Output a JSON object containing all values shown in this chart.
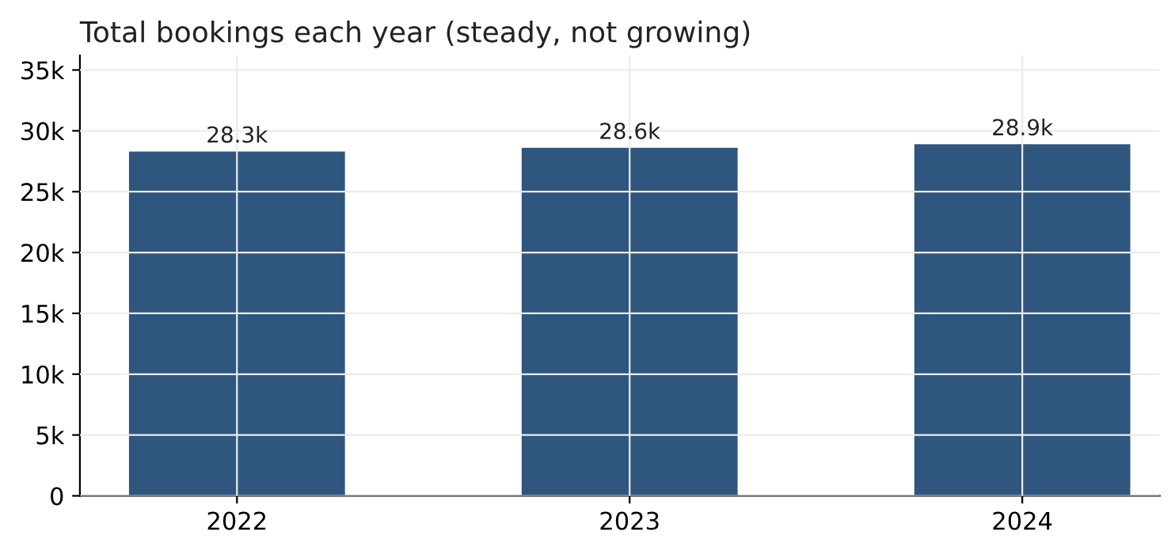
{
  "chart_data": {
    "type": "bar",
    "title": "Total bookings each year (steady, not growing)",
    "categories": [
      "2022",
      "2023",
      "2024"
    ],
    "values": [
      28300,
      28600,
      28900
    ],
    "value_labels": [
      "28.3k",
      "28.6k",
      "28.9k"
    ],
    "color": "#2e567e",
    "ylim": [
      0,
      36200
    ],
    "yticks": [
      0,
      {
        "value": 5000,
        "label": "5k"
      },
      {
        "value": 10000,
        "label": "10k"
      },
      {
        "value": 15000,
        "label": "15k"
      },
      {
        "value": 20000,
        "label": "20k"
      },
      {
        "value": 25000,
        "label": "25k"
      },
      {
        "value": 30000,
        "label": "30k"
      },
      {
        "value": 35000,
        "label": "35k"
      }
    ],
    "grid": true
  }
}
